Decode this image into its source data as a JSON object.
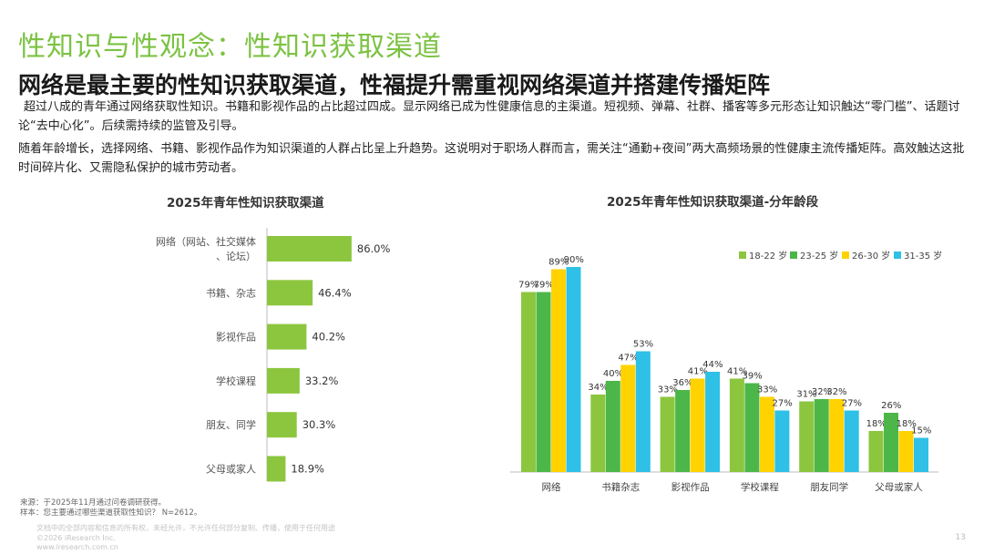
{
  "page_title": "性知识与性观念：性知识获取渠道",
  "headline": "网络是最主要的性知识获取渠道，性福提升需重视网络渠道并搭建传播矩阵",
  "paragraphs": [
    "超过八成的青年通过网络获取性知识。书籍和影视作品的占比超过四成。显示网络已成为性健康信息的主渠道。短视频、弹幕、社群、播客等多元形态让知识触达“零门槛”、话题讨论“去中心化”。后续需持续的监管及引导。",
    "随着年龄增长，选择网络、书籍、影视作品作为知识渠道的人群占比呈上升趋势。这说明对于职场人群而言，需关注“通勤+夜间”两大高频场景的性健康主流传播矩阵。高效触达这批时间碎片化、又需隐私保护的城市劳动者。"
  ],
  "colors": {
    "title_green": "#7cc242",
    "bar_green": "#8cc63f",
    "series": [
      "#8cc63f",
      "#4cb748",
      "#ffd200",
      "#2ec0e6"
    ]
  },
  "chart_data": [
    {
      "type": "bar",
      "orientation": "horizontal",
      "title": "2025年青年性知识获取渠道",
      "categories": [
        "网络（网站、社交媒体、论坛）",
        "书籍、杂志",
        "影视作品",
        "学校课程",
        "朋友、同学",
        "父母或家人"
      ],
      "values": [
        86.0,
        46.4,
        40.2,
        33.2,
        30.3,
        18.9
      ],
      "value_labels": [
        "86.0%",
        "46.4%",
        "40.2%",
        "33.2%",
        "30.3%",
        "18.9%"
      ],
      "unit": "%",
      "xlim": [
        0,
        100
      ],
      "grid": false
    },
    {
      "type": "bar",
      "orientation": "vertical",
      "title": "2025年青年性知识获取渠道-分年龄段",
      "categories": [
        "网络",
        "书籍杂志",
        "影视作品",
        "学校课程",
        "朋友同学",
        "父母或家人"
      ],
      "series": [
        {
          "name": "18-22 岁",
          "values": [
            79,
            34,
            33,
            41,
            31,
            18
          ],
          "labels": [
            "79%",
            "34%",
            "33%",
            "41%",
            "31%",
            "18%"
          ]
        },
        {
          "name": "23-25 岁",
          "values": [
            79,
            40,
            36,
            39,
            32,
            26
          ],
          "labels": [
            "79%",
            "40%",
            "36%",
            "39%",
            "32%",
            "26%"
          ]
        },
        {
          "name": "26-30 岁",
          "values": [
            89,
            47,
            41,
            33,
            32,
            18
          ],
          "labels": [
            "89%",
            "47%",
            "41%",
            "33%",
            "32%",
            "18%"
          ]
        },
        {
          "name": "31-35 岁",
          "values": [
            90,
            53,
            44,
            27,
            27,
            15
          ],
          "labels": [
            "90%",
            "53%",
            "44%",
            "27%",
            "27%",
            "15%"
          ]
        }
      ],
      "ylim": [
        0,
        100
      ],
      "legend": "top-right",
      "grid": false
    }
  ],
  "footer": {
    "source": "来源：于2025年11月通过问卷调研获得。",
    "sample": "样本：您主要通过哪些渠道获取性知识？ N=2612。",
    "note": "文档中的全部内容和信息的所有权，未经允许，不允许任何部分复制、传播，使用于任何用途",
    "copyright": "©2026 iResearch Inc.",
    "url": "www.iresearch.com.cn",
    "page_number": "13"
  }
}
